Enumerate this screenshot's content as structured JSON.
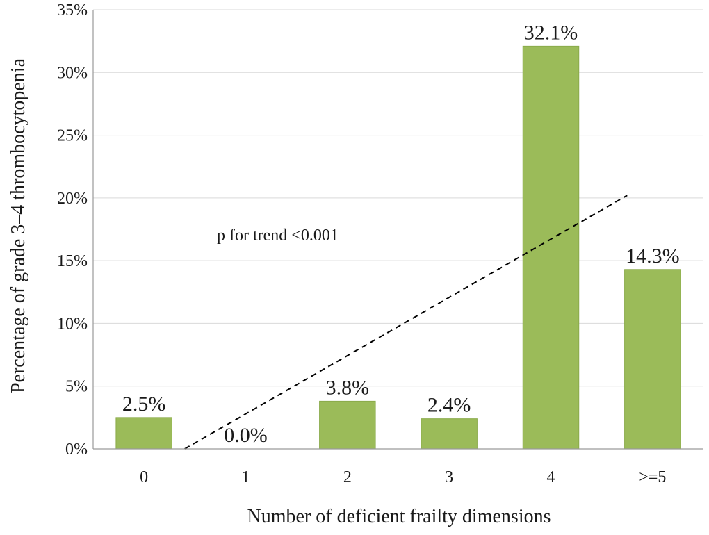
{
  "chart_data": {
    "type": "bar",
    "categories": [
      "0",
      "1",
      "2",
      "3",
      "4",
      ">=5"
    ],
    "values": [
      2.5,
      0.0,
      3.8,
      2.4,
      32.1,
      14.3
    ],
    "data_labels": [
      "2.5%",
      "0.0%",
      "3.8%",
      "2.4%",
      "32.1%",
      "14.3%"
    ],
    "xlabel": "Number of deficient frailty dimensions",
    "ylabel": "Percentage of grade 3–4 thrombocytopenia",
    "ylim": [
      0,
      35
    ],
    "yticks": [
      0,
      5,
      10,
      15,
      20,
      25,
      30,
      35
    ],
    "ytick_labels": [
      "0%",
      "5%",
      "10%",
      "15%",
      "20%",
      "25%",
      "30%",
      "35%"
    ],
    "annotation": "p for trend <0.001",
    "trendline": {
      "style": "dashed",
      "start": {
        "x": "1",
        "y": 0
      },
      "end": {
        "x": ">=5",
        "y": 20.2
      }
    },
    "grid": true,
    "legend": "none",
    "colors": {
      "bar": "#9bbb59",
      "bar_edge": "#8aab4a",
      "trend": "#000000"
    }
  }
}
